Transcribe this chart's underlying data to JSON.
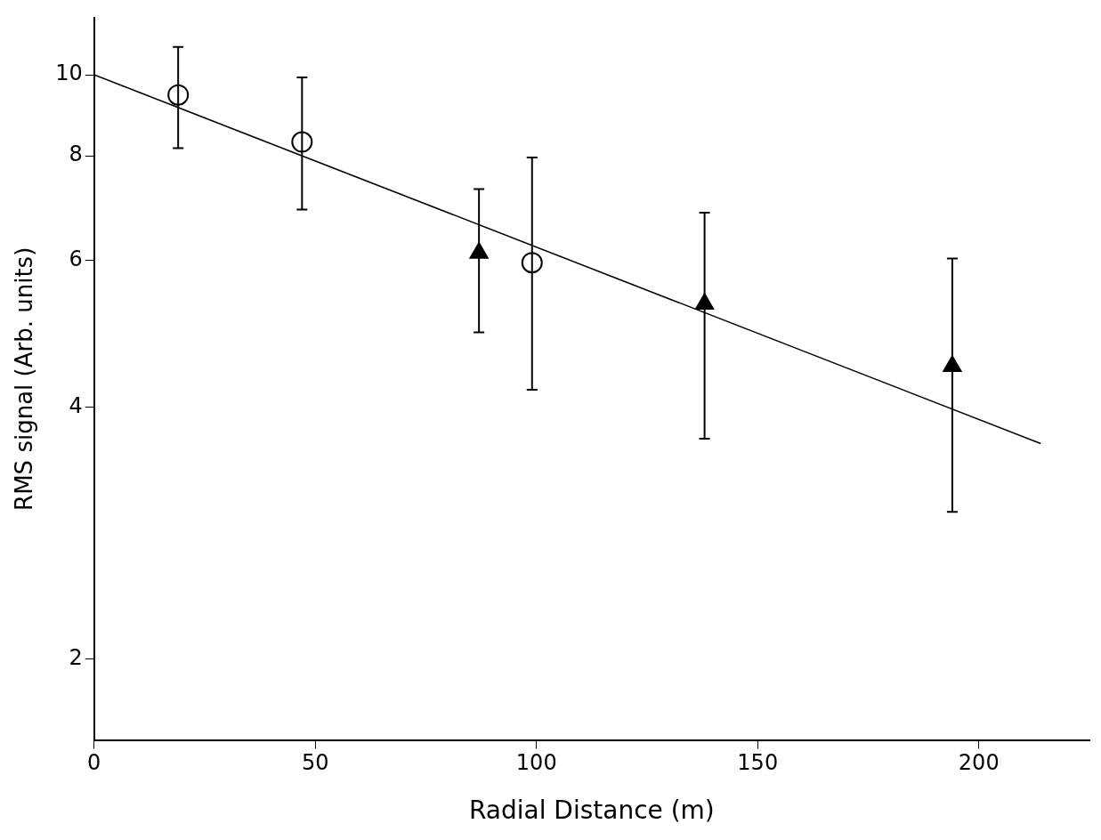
{
  "chart_data": {
    "type": "scatter",
    "xlabel": "Radial Distance (m)",
    "ylabel": "RMS signal (Arb. units)",
    "xlim": [
      0,
      225
    ],
    "xticks": [
      0,
      50,
      100,
      150,
      200
    ],
    "ylim": [
      1.6,
      11.7
    ],
    "yticks": [
      2,
      4,
      6,
      8,
      10
    ],
    "log": "y",
    "grid": false,
    "legend": false,
    "series": [
      {
        "marker": "circle",
        "color": "#000000",
        "x": [
          19,
          47,
          99
        ],
        "values": [
          9.46,
          8.31,
          5.96
        ],
        "errors": [
          [
            8.17,
            10.8
          ],
          [
            6.9,
            9.93
          ],
          [
            4.2,
            7.96
          ]
        ]
      },
      {
        "marker": "triangle",
        "color": "#000000",
        "x": [
          87,
          138,
          194
        ],
        "values": [
          6.12,
          5.32,
          4.48
        ],
        "errors": [
          [
            4.92,
            7.3
          ],
          [
            3.67,
            6.84
          ],
          [
            3.0,
            6.03
          ]
        ]
      },
      {
        "type": "line",
        "marker": "none",
        "line_style": "solid",
        "color": "#000000",
        "x": [
          0,
          214
        ],
        "values": [
          10,
          3.62
        ]
      }
    ]
  }
}
